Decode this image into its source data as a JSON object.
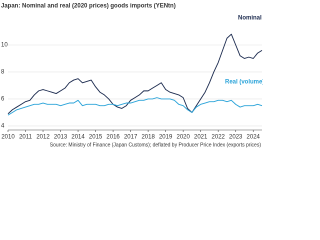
{
  "chart_data": {
    "type": "line",
    "title": "Japan: Nominal and real (2020 prices) goods imports (YENtn)",
    "source": "Source: Ministry of Finance (Japan Customs); deflated by Producer Price Index (exports prices)",
    "x": [
      2010,
      2010.25,
      2010.5,
      2010.75,
      2011,
      2011.25,
      2011.5,
      2011.75,
      2012,
      2012.25,
      2012.5,
      2012.75,
      2013,
      2013.25,
      2013.5,
      2013.75,
      2014,
      2014.25,
      2014.5,
      2014.75,
      2015,
      2015.25,
      2015.5,
      2015.75,
      2016,
      2016.25,
      2016.5,
      2016.75,
      2017,
      2017.25,
      2017.5,
      2017.75,
      2018,
      2018.25,
      2018.5,
      2018.75,
      2019,
      2019.25,
      2019.5,
      2019.75,
      2020,
      2020.25,
      2020.5,
      2020.75,
      2021,
      2021.25,
      2021.5,
      2021.75,
      2022,
      2022.25,
      2022.5,
      2022.75,
      2023,
      2023.25,
      2023.5,
      2023.75,
      2024,
      2024.25,
      2024.5
    ],
    "series": [
      {
        "name": "Nominal",
        "color": "#1c2b4f",
        "values": [
          4.9,
          5.2,
          5.4,
          5.6,
          5.8,
          5.9,
          6.3,
          6.6,
          6.7,
          6.6,
          6.5,
          6.4,
          6.6,
          6.8,
          7.2,
          7.4,
          7.5,
          7.2,
          7.3,
          7.4,
          6.9,
          6.5,
          6.3,
          6.0,
          5.6,
          5.4,
          5.3,
          5.5,
          5.9,
          6.1,
          6.3,
          6.6,
          6.6,
          6.8,
          7.0,
          7.2,
          6.7,
          6.5,
          6.4,
          6.3,
          6.1,
          5.3,
          5.0,
          5.5,
          6.0,
          6.5,
          7.2,
          8.0,
          8.7,
          9.6,
          10.5,
          10.8,
          10.0,
          9.2,
          9.0,
          9.1,
          9.0,
          9.4,
          9.6
        ]
      },
      {
        "name": "Real (volume)",
        "color": "#2aa3d9",
        "values": [
          4.8,
          5.0,
          5.2,
          5.3,
          5.4,
          5.5,
          5.6,
          5.6,
          5.7,
          5.6,
          5.6,
          5.6,
          5.5,
          5.6,
          5.7,
          5.7,
          5.9,
          5.5,
          5.6,
          5.6,
          5.6,
          5.5,
          5.5,
          5.6,
          5.6,
          5.5,
          5.6,
          5.7,
          5.7,
          5.8,
          5.9,
          5.9,
          6.0,
          6.0,
          6.1,
          6.0,
          6.0,
          6.0,
          5.9,
          5.6,
          5.5,
          5.2,
          5.0,
          5.4,
          5.6,
          5.7,
          5.8,
          5.8,
          5.9,
          5.9,
          5.8,
          5.9,
          5.6,
          5.4,
          5.5,
          5.5,
          5.5,
          5.6,
          5.5
        ]
      }
    ],
    "xlim": [
      2010,
      2024.5
    ],
    "xticks": [
      2010,
      2011,
      2012,
      2013,
      2014,
      2015,
      2016,
      2017,
      2018,
      2019,
      2020,
      2021,
      2022,
      2023,
      2024
    ],
    "ylim": [
      3.7,
      11.6
    ],
    "yticks": [
      4,
      6,
      8,
      10
    ],
    "grid": true
  }
}
